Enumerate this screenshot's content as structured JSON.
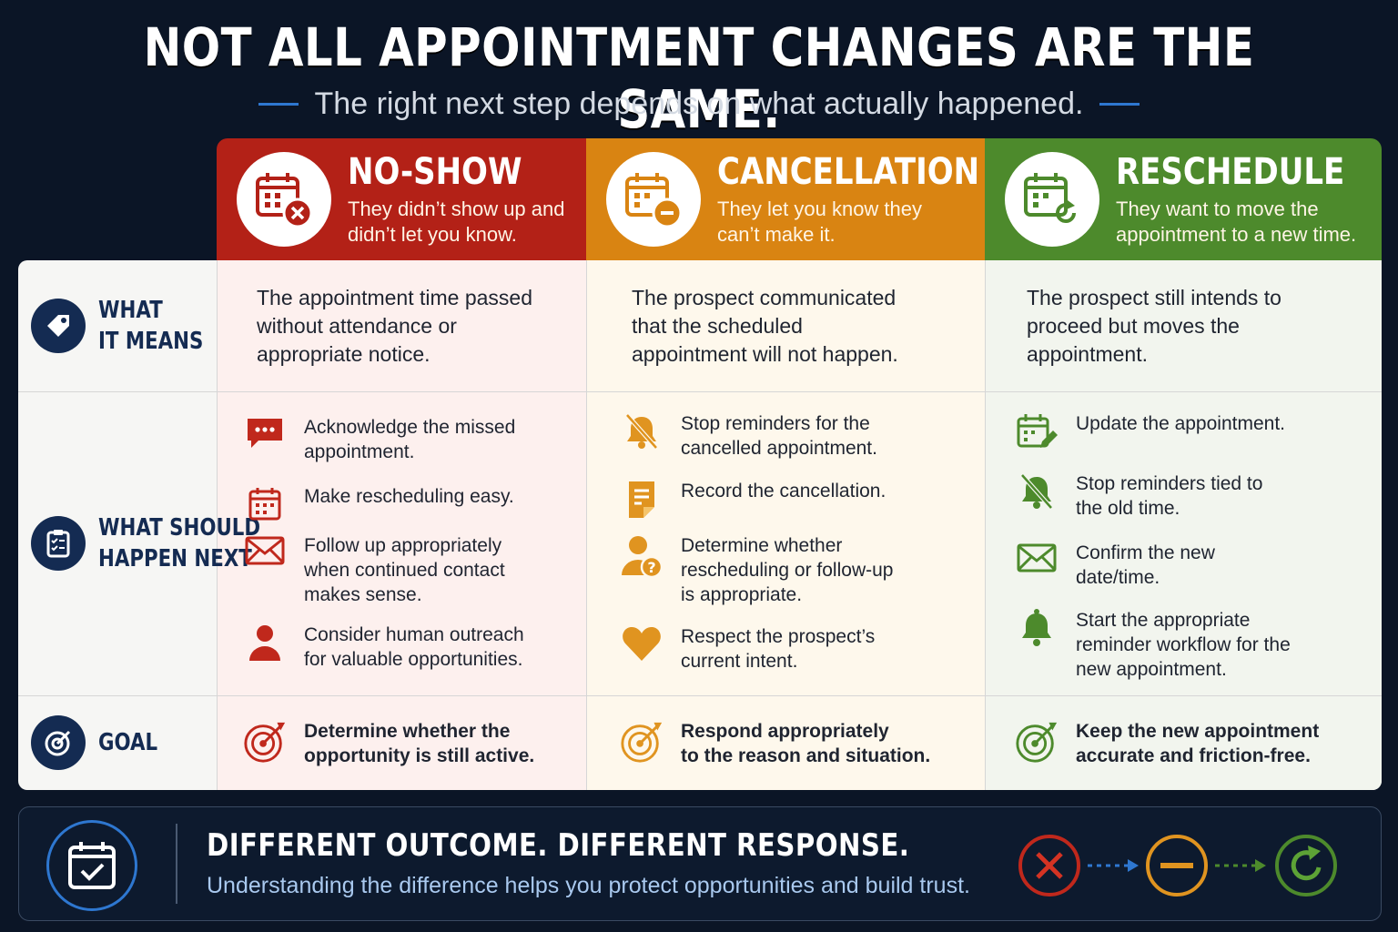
{
  "title": "NOT ALL APPOINTMENT CHANGES ARE THE SAME.",
  "subtitle": "The right next step depends on what actually happened.",
  "columns": [
    {
      "title": "NO-SHOW",
      "desc_line1": "They didn’t show up and",
      "desc_line2": "didn’t let you know.",
      "color": "#b32117",
      "icon": "calendar-x-icon"
    },
    {
      "title": "CANCELLATION",
      "desc_line1": "They let you know they",
      "desc_line2": "can’t make it.",
      "color": "#d98412",
      "icon": "calendar-minus-icon"
    },
    {
      "title": "RESCHEDULE",
      "desc_line1": "They want to move the",
      "desc_line2": "appointment to a new time.",
      "color": "#4d8a2c",
      "icon": "calendar-refresh-icon"
    }
  ],
  "rows": {
    "means": {
      "label_line1": "WHAT",
      "label_line2": "IT MEANS",
      "icon": "tag-icon"
    },
    "next": {
      "label_line1": "WHAT SHOULD",
      "label_line2": "HAPPEN NEXT",
      "icon": "checklist-icon"
    },
    "goal": {
      "label_line1": "GOAL",
      "icon": "target-icon"
    }
  },
  "means": [
    {
      "l1": "The appointment time passed",
      "l2": "without attendance or",
      "l3": "appropriate notice."
    },
    {
      "l1": "The prospect communicated",
      "l2": "that the scheduled",
      "l3": "appointment will not happen."
    },
    {
      "l1": "The prospect still intends to",
      "l2": "proceed but moves the",
      "l3": "appointment."
    }
  ],
  "steps": {
    "noshow": [
      {
        "icon": "chat-icon",
        "l1": "Acknowledge the missed",
        "l2": "appointment."
      },
      {
        "icon": "calendar-icon",
        "l1": "Make rescheduling easy.",
        "l2": ""
      },
      {
        "icon": "envelope-icon",
        "l1": "Follow up appropriately",
        "l2": "when continued contact",
        "l3": "makes sense."
      },
      {
        "icon": "person-icon",
        "l1": "Consider human outreach",
        "l2": "for valuable opportunities."
      }
    ],
    "cancel": [
      {
        "icon": "bell-off-icon",
        "l1": "Stop reminders for the",
        "l2": "cancelled appointment."
      },
      {
        "icon": "document-icon",
        "l1": "Record the cancellation.",
        "l2": ""
      },
      {
        "icon": "person-question-icon",
        "l1": "Determine whether",
        "l2": "rescheduling or follow-up",
        "l3": "is appropriate."
      },
      {
        "icon": "heart-icon",
        "l1": "Respect the prospect’s",
        "l2": "current intent."
      }
    ],
    "resched": [
      {
        "icon": "calendar-edit-icon",
        "l1": "Update the appointment.",
        "l2": ""
      },
      {
        "icon": "bell-off-icon",
        "l1": "Stop reminders tied to",
        "l2": "the old time."
      },
      {
        "icon": "envelope-icon",
        "l1": "Confirm the new",
        "l2": "date/time."
      },
      {
        "icon": "bell-icon",
        "l1": "Start the appropriate",
        "l2": "reminder workflow for the",
        "l3": "new appointment."
      }
    ]
  },
  "goals": [
    {
      "l1": "Determine whether the",
      "l2": "opportunity is still active."
    },
    {
      "l1": "Respond appropriately",
      "l2": "to the reason and situation."
    },
    {
      "l1": "Keep the new appointment",
      "l2": "accurate and friction-free."
    }
  ],
  "banner": {
    "title": "DIFFERENT OUTCOME. DIFFERENT RESPONSE.",
    "subtitle": "Understanding the difference helps you protect opportunities and build trust.",
    "icon": "calendar-check-icon",
    "flow_icons": [
      "x-circle-icon",
      "minus-circle-icon",
      "refresh-circle-icon"
    ]
  }
}
